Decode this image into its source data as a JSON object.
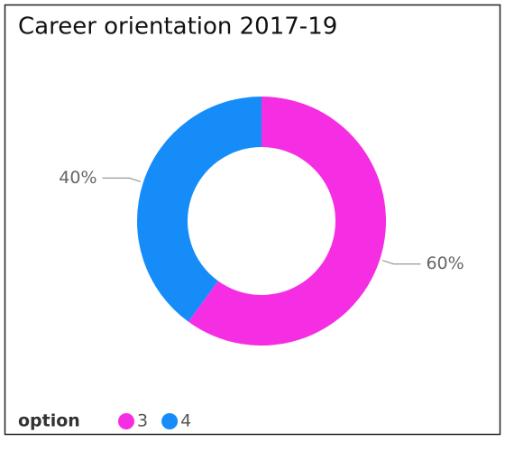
{
  "chart_data": {
    "type": "pie",
    "title": "Career orientation 2017-19",
    "legend_title": "option",
    "categories": [
      "3",
      "4"
    ],
    "values": [
      60,
      40
    ],
    "value_labels": [
      "60%",
      "40%"
    ],
    "colors": [
      "#f62ee3",
      "#168cf8"
    ],
    "donut": true,
    "legend": "bottom-left"
  }
}
